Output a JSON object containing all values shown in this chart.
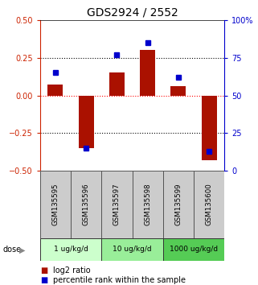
{
  "title": "GDS2924 / 2552",
  "samples": [
    "GSM135595",
    "GSM135596",
    "GSM135597",
    "GSM135598",
    "GSM135599",
    "GSM135600"
  ],
  "log2_ratio": [
    0.07,
    -0.35,
    0.15,
    0.3,
    0.06,
    -0.43
  ],
  "percentile_rank": [
    65,
    15,
    77,
    85,
    62,
    13
  ],
  "ylim_left": [
    -0.5,
    0.5
  ],
  "ylim_right": [
    0,
    100
  ],
  "yticks_left": [
    -0.5,
    -0.25,
    0,
    0.25,
    0.5
  ],
  "yticks_right": [
    0,
    25,
    50,
    75,
    100
  ],
  "ytick_labels_right": [
    "0",
    "25",
    "50",
    "75",
    "100%"
  ],
  "dose_groups": [
    {
      "label": "1 ug/kg/d",
      "samples": [
        0,
        1
      ],
      "color": "#ccffcc"
    },
    {
      "label": "10 ug/kg/d",
      "samples": [
        2,
        3
      ],
      "color": "#99ee99"
    },
    {
      "label": "1000 ug/kg/d",
      "samples": [
        4,
        5
      ],
      "color": "#55cc55"
    }
  ],
  "bar_color": "#aa1100",
  "square_color": "#0000cc",
  "bar_width": 0.5,
  "legend_red_label": "log2 ratio",
  "legend_blue_label": "percentile rank within the sample",
  "dose_label": "dose",
  "left_yaxis_color": "#cc2200",
  "right_yaxis_color": "#0000cc",
  "title_fontsize": 10,
  "tick_fontsize": 7,
  "label_fontsize": 7,
  "legend_fontsize": 7
}
